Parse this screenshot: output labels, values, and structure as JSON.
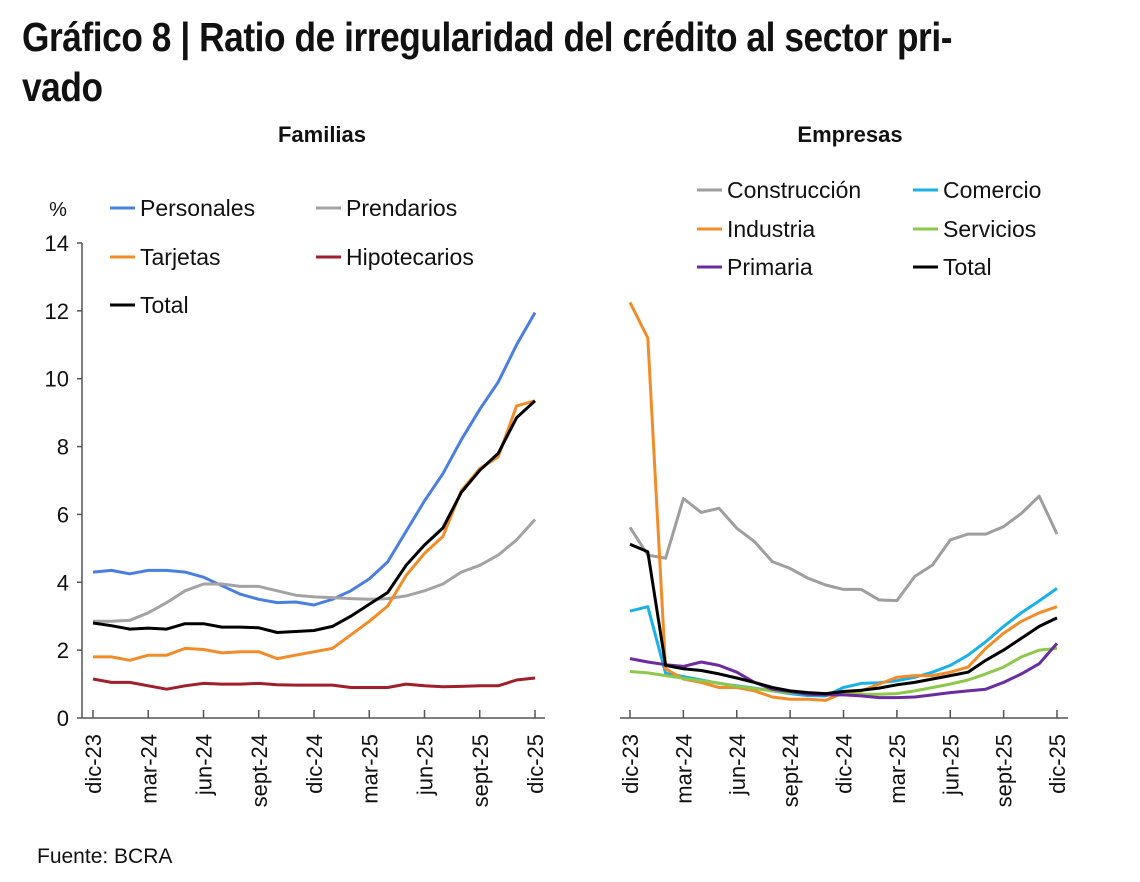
{
  "title": {
    "line1": "Gráfico 8 | Ratio de irregularidad del crédito al sector pri-",
    "line2": "vado"
  },
  "source": "Fuente: BCRA",
  "chart_data": [
    {
      "type": "line",
      "title": "Familias",
      "ylabel": "%",
      "ylim": [
        0,
        14
      ],
      "yticks": [
        "0",
        "2",
        "4",
        "6",
        "8",
        "10",
        "12",
        "14"
      ],
      "xtick_labels": [
        "dic-23",
        "mar-24",
        "jun-24",
        "sept-24",
        "dic-24",
        "mar-25",
        "jun-25",
        "sept-25",
        "dic-25"
      ],
      "x": [
        "dic-23",
        "ene-24",
        "feb-24",
        "mar-24",
        "abr-24",
        "may-24",
        "jun-24",
        "jul-24",
        "ago-24",
        "sept-24",
        "oct-24",
        "nov-24",
        "dic-24",
        "ene-25",
        "feb-25",
        "mar-25",
        "abr-25",
        "may-25",
        "jun-25",
        "jul-25",
        "ago-25",
        "sept-25",
        "oct-25",
        "nov-25",
        "dic-25"
      ],
      "legend": "top-left",
      "grid": false,
      "series": [
        {
          "name": "Personales",
          "color": "#4a7fe0",
          "values": [
            4.3,
            4.35,
            4.25,
            4.35,
            4.35,
            4.3,
            4.15,
            3.9,
            3.65,
            3.5,
            3.4,
            3.42,
            3.33,
            3.5,
            3.75,
            4.1,
            4.6,
            5.5,
            6.4,
            7.2,
            8.2,
            9.1,
            9.9,
            11.0,
            11.95
          ]
        },
        {
          "name": "Prendarios",
          "color": "#a3a3a3",
          "values": [
            2.85,
            2.85,
            2.88,
            3.1,
            3.4,
            3.75,
            3.95,
            3.95,
            3.88,
            3.88,
            3.75,
            3.62,
            3.57,
            3.55,
            3.52,
            3.5,
            3.52,
            3.6,
            3.75,
            3.95,
            4.3,
            4.5,
            4.8,
            5.25,
            5.85
          ]
        },
        {
          "name": "Tarjetas",
          "color": "#f28c28",
          "values": [
            1.8,
            1.8,
            1.7,
            1.85,
            1.85,
            2.05,
            2.02,
            1.92,
            1.95,
            1.95,
            1.75,
            1.85,
            1.95,
            2.05,
            2.45,
            2.85,
            3.3,
            4.2,
            4.85,
            5.35,
            6.7,
            7.35,
            7.7,
            9.2,
            9.35
          ]
        },
        {
          "name": "Hipotecarios",
          "color": "#a01f2a",
          "values": [
            1.15,
            1.05,
            1.05,
            0.95,
            0.85,
            0.95,
            1.02,
            1.0,
            1.0,
            1.02,
            0.98,
            0.97,
            0.97,
            0.97,
            0.9,
            0.9,
            0.9,
            1.0,
            0.95,
            0.92,
            0.93,
            0.95,
            0.95,
            1.12,
            1.18
          ]
        },
        {
          "name": "Total",
          "color": "#000000",
          "values": [
            2.8,
            2.72,
            2.62,
            2.65,
            2.62,
            2.78,
            2.78,
            2.68,
            2.68,
            2.66,
            2.52,
            2.55,
            2.58,
            2.7,
            3.0,
            3.35,
            3.7,
            4.5,
            5.1,
            5.6,
            6.65,
            7.3,
            7.8,
            8.85,
            9.35
          ]
        }
      ]
    },
    {
      "type": "line",
      "title": "Empresas",
      "ylim": [
        0,
        14
      ],
      "xtick_labels": [
        "dic-23",
        "mar-24",
        "jun-24",
        "sept-24",
        "dic-24",
        "mar-25",
        "jun-25",
        "sept-25",
        "dic-25"
      ],
      "x": [
        "dic-23",
        "ene-24",
        "feb-24",
        "mar-24",
        "abr-24",
        "may-24",
        "jun-24",
        "jul-24",
        "ago-24",
        "sept-24",
        "oct-24",
        "nov-24",
        "dic-24",
        "ene-25",
        "feb-25",
        "mar-25",
        "abr-25",
        "may-25",
        "jun-25",
        "jul-25",
        "ago-25",
        "sept-25",
        "oct-25",
        "nov-25",
        "dic-25"
      ],
      "legend": "top",
      "grid": false,
      "series": [
        {
          "name": "Construcción",
          "color": "#9e9e9e",
          "values": [
            5.62,
            4.8,
            4.71,
            6.47,
            6.06,
            6.18,
            5.59,
            5.2,
            4.61,
            4.41,
            4.12,
            3.92,
            3.79,
            3.79,
            3.48,
            3.46,
            4.17,
            4.51,
            5.25,
            5.42,
            5.42,
            5.64,
            6.03,
            6.54,
            5.42
          ]
        },
        {
          "name": "Comercio",
          "color": "#1ab0e8",
          "values": [
            3.15,
            3.28,
            1.32,
            1.22,
            1.12,
            1.02,
            0.95,
            0.88,
            0.8,
            0.72,
            0.66,
            0.65,
            0.9,
            1.02,
            1.04,
            1.1,
            1.2,
            1.35,
            1.55,
            1.85,
            2.25,
            2.7,
            3.1,
            3.45,
            3.82
          ]
        },
        {
          "name": "Industria",
          "color": "#f28c28",
          "values": [
            12.25,
            11.2,
            1.45,
            1.15,
            1.05,
            0.9,
            0.9,
            0.8,
            0.62,
            0.55,
            0.55,
            0.52,
            0.75,
            0.8,
            1.0,
            1.2,
            1.25,
            1.25,
            1.35,
            1.5,
            2.05,
            2.5,
            2.85,
            3.1,
            3.28
          ]
        },
        {
          "name": "Servicios",
          "color": "#8cc84b",
          "values": [
            1.37,
            1.33,
            1.25,
            1.17,
            1.1,
            1.03,
            0.93,
            0.87,
            0.8,
            0.75,
            0.72,
            0.7,
            0.7,
            0.7,
            0.7,
            0.72,
            0.8,
            0.9,
            1.0,
            1.12,
            1.3,
            1.5,
            1.8,
            2.0,
            2.05
          ]
        },
        {
          "name": "Primaria",
          "color": "#6a2ca0",
          "values": [
            1.75,
            1.65,
            1.57,
            1.52,
            1.65,
            1.55,
            1.35,
            1.05,
            0.85,
            0.78,
            0.7,
            0.68,
            0.68,
            0.65,
            0.6,
            0.6,
            0.62,
            0.68,
            0.75,
            0.8,
            0.85,
            1.05,
            1.3,
            1.6,
            2.2
          ]
        },
        {
          "name": "Total",
          "color": "#000000",
          "values": [
            5.12,
            4.9,
            1.55,
            1.45,
            1.4,
            1.3,
            1.18,
            1.05,
            0.9,
            0.8,
            0.75,
            0.72,
            0.78,
            0.82,
            0.88,
            0.98,
            1.05,
            1.15,
            1.25,
            1.35,
            1.7,
            2.0,
            2.35,
            2.7,
            2.95
          ]
        }
      ]
    }
  ]
}
